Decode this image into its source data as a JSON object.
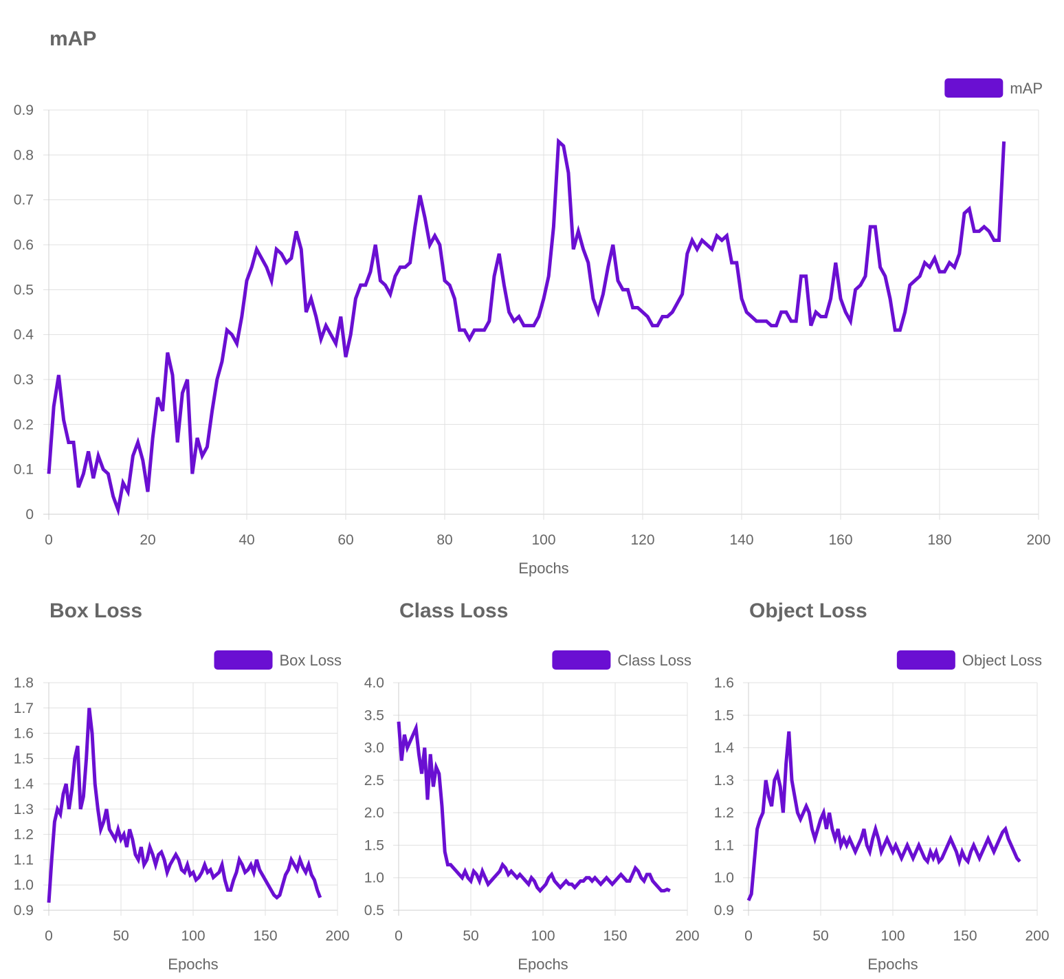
{
  "colors": {
    "series": "#6a0fd2",
    "grid": "#e0e0e0",
    "axis": "#cfcfcf",
    "text": "#666666"
  },
  "chart_data": [
    {
      "type": "line",
      "title": "mAP",
      "xlabel": "Epochs",
      "ylabel": "",
      "xlim": [
        0,
        200
      ],
      "ylim": [
        0,
        0.9
      ],
      "xticks": [
        "0",
        "20",
        "40",
        "60",
        "80",
        "100",
        "120",
        "140",
        "160",
        "180",
        "200"
      ],
      "yticks": [
        "0",
        "0.1",
        "0.2",
        "0.3",
        "0.4",
        "0.5",
        "0.6",
        "0.7",
        "0.8",
        "0.9"
      ],
      "legend": "top-right",
      "grid": true,
      "series": [
        {
          "name": "mAP",
          "x_start": 0,
          "x_step": 1,
          "values": [
            0.09,
            0.24,
            0.31,
            0.21,
            0.16,
            0.16,
            0.06,
            0.09,
            0.14,
            0.08,
            0.13,
            0.1,
            0.09,
            0.04,
            0.01,
            0.07,
            0.05,
            0.13,
            0.16,
            0.12,
            0.05,
            0.17,
            0.26,
            0.23,
            0.36,
            0.31,
            0.16,
            0.27,
            0.3,
            0.09,
            0.17,
            0.13,
            0.15,
            0.23,
            0.3,
            0.34,
            0.41,
            0.4,
            0.38,
            0.44,
            0.52,
            0.55,
            0.59,
            0.57,
            0.55,
            0.52,
            0.59,
            0.58,
            0.56,
            0.57,
            0.63,
            0.59,
            0.45,
            0.48,
            0.44,
            0.39,
            0.42,
            0.4,
            0.38,
            0.44,
            0.35,
            0.4,
            0.48,
            0.51,
            0.51,
            0.54,
            0.6,
            0.52,
            0.51,
            0.49,
            0.53,
            0.55,
            0.55,
            0.56,
            0.64,
            0.71,
            0.66,
            0.6,
            0.62,
            0.6,
            0.52,
            0.51,
            0.48,
            0.41,
            0.41,
            0.39,
            0.41,
            0.41,
            0.41,
            0.43,
            0.53,
            0.58,
            0.51,
            0.45,
            0.43,
            0.44,
            0.42,
            0.42,
            0.42,
            0.44,
            0.48,
            0.53,
            0.64,
            0.83,
            0.82,
            0.76,
            0.59,
            0.63,
            0.59,
            0.56,
            0.48,
            0.45,
            0.49,
            0.55,
            0.6,
            0.52,
            0.5,
            0.5,
            0.46,
            0.46,
            0.45,
            0.44,
            0.42,
            0.42,
            0.44,
            0.44,
            0.45,
            0.47,
            0.49,
            0.58,
            0.61,
            0.59,
            0.61,
            0.6,
            0.59,
            0.62,
            0.61,
            0.62,
            0.56,
            0.56,
            0.48,
            0.45,
            0.44,
            0.43,
            0.43,
            0.43,
            0.42,
            0.42,
            0.45,
            0.45,
            0.43,
            0.43,
            0.53,
            0.53,
            0.42,
            0.45,
            0.44,
            0.44,
            0.48,
            0.56,
            0.48,
            0.45,
            0.43,
            0.5,
            0.51,
            0.53,
            0.64,
            0.64,
            0.55,
            0.53,
            0.48,
            0.41,
            0.41,
            0.45,
            0.51,
            0.52,
            0.53,
            0.56,
            0.55,
            0.57,
            0.54,
            0.54,
            0.56,
            0.55,
            0.58,
            0.67,
            0.68,
            0.63,
            0.63,
            0.64,
            0.63,
            0.61,
            0.61,
            0.83
          ]
        }
      ]
    },
    {
      "type": "line",
      "title": "Box Loss",
      "xlabel": "Epochs",
      "ylabel": "",
      "xlim": [
        0,
        200
      ],
      "ylim": [
        0.9,
        1.8
      ],
      "xticks": [
        "0",
        "50",
        "100",
        "150",
        "200"
      ],
      "yticks": [
        "0.9",
        "1.0",
        "1.1",
        "1.2",
        "1.3",
        "1.4",
        "1.5",
        "1.6",
        "1.7",
        "1.8"
      ],
      "legend": "top-right",
      "grid": true,
      "series": [
        {
          "name": "Box Loss",
          "x_start": 0,
          "x_step": 2,
          "values": [
            0.93,
            1.1,
            1.25,
            1.3,
            1.28,
            1.36,
            1.4,
            1.3,
            1.38,
            1.5,
            1.55,
            1.3,
            1.35,
            1.5,
            1.7,
            1.6,
            1.4,
            1.3,
            1.22,
            1.25,
            1.3,
            1.22,
            1.2,
            1.18,
            1.22,
            1.18,
            1.2,
            1.15,
            1.22,
            1.18,
            1.12,
            1.1,
            1.15,
            1.08,
            1.1,
            1.15,
            1.12,
            1.08,
            1.12,
            1.13,
            1.1,
            1.05,
            1.08,
            1.1,
            1.12,
            1.1,
            1.06,
            1.05,
            1.08,
            1.04,
            1.05,
            1.02,
            1.03,
            1.05,
            1.08,
            1.05,
            1.06,
            1.03,
            1.04,
            1.05,
            1.08,
            1.02,
            0.98,
            0.98,
            1.02,
            1.05,
            1.1,
            1.08,
            1.05,
            1.06,
            1.08,
            1.05,
            1.1,
            1.06,
            1.04,
            1.02,
            1.0,
            0.98,
            0.96,
            0.95,
            0.96,
            1.0,
            1.04,
            1.06,
            1.1,
            1.08,
            1.06,
            1.1,
            1.07,
            1.05,
            1.08,
            1.04,
            1.02,
            0.98,
            0.95
          ]
        }
      ]
    },
    {
      "type": "line",
      "title": "Class Loss",
      "xlabel": "Epochs",
      "ylabel": "",
      "xlim": [
        0,
        200
      ],
      "ylim": [
        0.5,
        4.0
      ],
      "xticks": [
        "0",
        "50",
        "100",
        "150",
        "200"
      ],
      "yticks": [
        "0.5",
        "1.0",
        "1.5",
        "2.0",
        "2.5",
        "3.0",
        "3.5",
        "4.0"
      ],
      "legend": "top-right",
      "grid": true,
      "series": [
        {
          "name": "Class Loss",
          "x_start": 0,
          "x_step": 2,
          "values": [
            3.4,
            2.8,
            3.2,
            3.0,
            3.1,
            3.2,
            3.3,
            2.9,
            2.6,
            3.0,
            2.2,
            2.9,
            2.4,
            2.7,
            2.6,
            2.1,
            1.4,
            1.2,
            1.2,
            1.15,
            1.1,
            1.05,
            1.0,
            1.1,
            1.0,
            0.95,
            1.1,
            1.05,
            0.95,
            1.1,
            1.0,
            0.9,
            0.95,
            1.0,
            1.05,
            1.1,
            1.2,
            1.15,
            1.05,
            1.1,
            1.05,
            1.0,
            1.05,
            1.0,
            0.95,
            0.9,
            1.0,
            0.95,
            0.85,
            0.8,
            0.85,
            0.9,
            1.0,
            1.05,
            0.95,
            0.9,
            0.85,
            0.9,
            0.95,
            0.9,
            0.9,
            0.85,
            0.9,
            0.95,
            0.95,
            1.0,
            1.0,
            0.95,
            1.0,
            0.95,
            0.9,
            0.95,
            1.0,
            0.95,
            0.9,
            0.95,
            1.0,
            1.05,
            1.0,
            0.95,
            0.95,
            1.05,
            1.15,
            1.1,
            1.0,
            0.95,
            1.05,
            1.05,
            0.95,
            0.9,
            0.85,
            0.8,
            0.8,
            0.82,
            0.8
          ]
        }
      ]
    },
    {
      "type": "line",
      "title": "Object Loss",
      "xlabel": "Epochs",
      "ylabel": "",
      "xlim": [
        0,
        200
      ],
      "ylim": [
        0.9,
        1.6
      ],
      "xticks": [
        "0",
        "50",
        "100",
        "150",
        "200"
      ],
      "yticks": [
        "0.9",
        "1.0",
        "1.1",
        "1.2",
        "1.3",
        "1.4",
        "1.5",
        "1.6"
      ],
      "legend": "top-right",
      "grid": true,
      "series": [
        {
          "name": "Object Loss",
          "x_start": 0,
          "x_step": 2,
          "values": [
            0.93,
            0.95,
            1.05,
            1.15,
            1.18,
            1.2,
            1.3,
            1.25,
            1.22,
            1.3,
            1.32,
            1.28,
            1.2,
            1.35,
            1.45,
            1.3,
            1.25,
            1.2,
            1.18,
            1.2,
            1.22,
            1.2,
            1.15,
            1.12,
            1.15,
            1.18,
            1.2,
            1.15,
            1.2,
            1.15,
            1.12,
            1.15,
            1.1,
            1.12,
            1.1,
            1.12,
            1.1,
            1.08,
            1.1,
            1.12,
            1.15,
            1.1,
            1.08,
            1.12,
            1.15,
            1.12,
            1.08,
            1.1,
            1.12,
            1.1,
            1.08,
            1.1,
            1.08,
            1.06,
            1.08,
            1.1,
            1.08,
            1.06,
            1.08,
            1.1,
            1.08,
            1.06,
            1.05,
            1.08,
            1.06,
            1.08,
            1.05,
            1.06,
            1.08,
            1.1,
            1.12,
            1.1,
            1.08,
            1.05,
            1.08,
            1.06,
            1.05,
            1.08,
            1.1,
            1.08,
            1.06,
            1.08,
            1.1,
            1.12,
            1.1,
            1.08,
            1.1,
            1.12,
            1.14,
            1.15,
            1.12,
            1.1,
            1.08,
            1.06,
            1.05
          ]
        }
      ]
    }
  ]
}
